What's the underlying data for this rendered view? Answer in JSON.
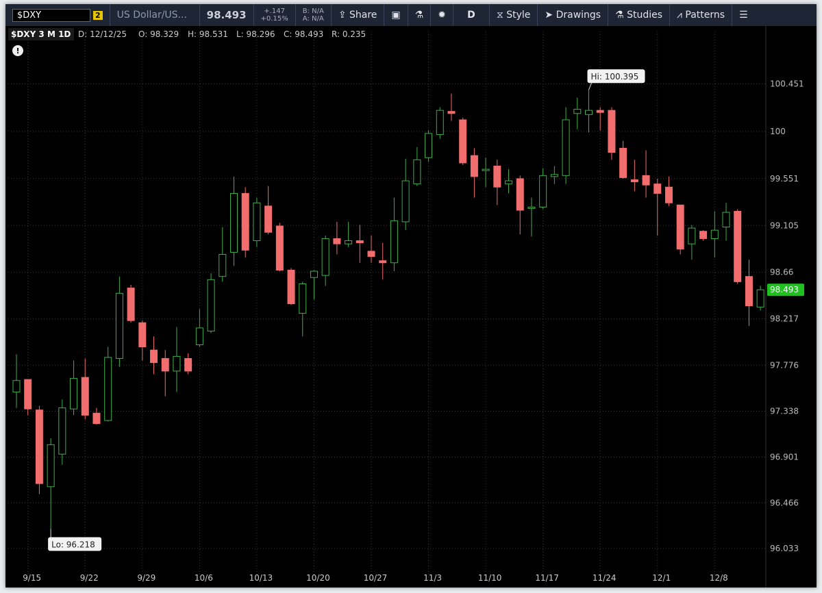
{
  "toolbar": {
    "symbol": "$DXY",
    "link_group": "2",
    "description": "US Dollar/US...",
    "last": "98.493",
    "change": "+.147",
    "change_pct": "+0.15%",
    "bid": "B: N/A",
    "ask": "A: N/A",
    "share": "Share",
    "aggregation": "D",
    "style": "Style",
    "drawings": "Drawings",
    "studies": "Studies",
    "patterns": "Patterns"
  },
  "info_bar": {
    "symbol": "$DXY 3 M 1D",
    "date": "D: 12/12/25",
    "open": "O: 98.329",
    "high": "H: 98.531",
    "low": "L: 98.296",
    "close": "C: 98.493",
    "range": "R: 0.235"
  },
  "chart_data": {
    "type": "candlestick",
    "categories": [
      null,
      "9/15",
      null,
      null,
      null,
      null,
      "9/22",
      null,
      null,
      null,
      null,
      "9/29",
      null,
      null,
      null,
      null,
      "10/6",
      null,
      null,
      null,
      null,
      "10/13",
      null,
      null,
      null,
      null,
      "10/20",
      null,
      null,
      null,
      null,
      "10/27",
      null,
      null,
      null,
      null,
      "11/3",
      null,
      null,
      null,
      null,
      "11/10",
      null,
      null,
      null,
      null,
      "11/17",
      null,
      null,
      null,
      null,
      "11/24",
      null,
      null,
      null,
      null,
      "12/1",
      null,
      null,
      null,
      null,
      "12/8",
      null,
      null,
      null,
      null
    ],
    "open": [
      97.52,
      97.64,
      97.35,
      96.62,
      96.93,
      97.36,
      97.66,
      97.32,
      97.25,
      97.84,
      98.51,
      98.18,
      97.92,
      97.84,
      97.72,
      97.84,
      97.97,
      98.1,
      98.62,
      98.85,
      99.41,
      98.96,
      99.29,
      99.1,
      98.68,
      98.27,
      98.61,
      98.63,
      98.98,
      98.93,
      98.96,
      98.86,
      98.77,
      98.75,
      99.14,
      99.5,
      99.75,
      99.97,
      100.19,
      100.11,
      99.77,
      99.63,
      99.67,
      99.5,
      99.55,
      99.27,
      99.28,
      99.57,
      99.58,
      100.17,
      100.16,
      100.2,
      100.2,
      99.84,
      99.54,
      99.58,
      99.5,
      99.47,
      99.3,
      98.93,
      99.05,
      98.98,
      99.09,
      99.24,
      98.62,
      98.329
    ],
    "high": [
      97.88,
      97.64,
      97.39,
      97.08,
      97.45,
      97.82,
      97.84,
      97.37,
      97.95,
      98.62,
      98.54,
      98.2,
      98.05,
      97.92,
      98.14,
      97.89,
      98.31,
      98.65,
      99.09,
      99.57,
      99.47,
      99.37,
      99.48,
      99.13,
      98.7,
      98.57,
      98.68,
      99.01,
      99.14,
      99.14,
      99.11,
      99.01,
      98.94,
      99.37,
      99.74,
      99.85,
      100.01,
      100.23,
      100.36,
      100.13,
      99.84,
      99.75,
      99.73,
      99.64,
      99.58,
      99.37,
      99.65,
      99.67,
      100.23,
      100.32,
      100.395,
      100.23,
      100.23,
      99.91,
      99.73,
      99.82,
      99.55,
      99.57,
      99.3,
      99.11,
      99.06,
      99.24,
      99.32,
      99.26,
      98.78,
      98.531
    ],
    "low": [
      97.37,
      97.3,
      96.55,
      96.218,
      96.83,
      97.3,
      97.26,
      97.21,
      97.24,
      97.76,
      98.18,
      97.82,
      97.69,
      97.48,
      97.52,
      97.69,
      97.95,
      98.08,
      98.57,
      98.72,
      98.8,
      98.9,
      99.02,
      98.67,
      98.35,
      98.05,
      98.4,
      98.53,
      98.83,
      98.9,
      98.75,
      98.75,
      98.59,
      98.67,
      99.06,
      99.48,
      99.71,
      99.93,
      100.1,
      99.68,
      99.37,
      99.47,
      99.3,
      99.41,
      99.02,
      99.0,
      99.26,
      99.5,
      99.5,
      100.02,
      99.99,
      100.01,
      99.73,
      99.55,
      99.43,
      99.37,
      99.01,
      99.29,
      98.83,
      98.78,
      98.96,
      98.8,
      98.96,
      98.55,
      98.15,
      98.296
    ],
    "close": [
      97.63,
      97.36,
      96.65,
      97.02,
      97.37,
      97.65,
      97.3,
      97.22,
      97.85,
      98.46,
      98.2,
      97.95,
      97.8,
      97.72,
      97.86,
      97.72,
      98.13,
      98.59,
      98.83,
      99.41,
      98.87,
      99.32,
      99.04,
      98.68,
      98.36,
      98.55,
      98.67,
      98.98,
      98.93,
      98.96,
      98.94,
      98.81,
      98.75,
      99.15,
      99.53,
      99.73,
      99.98,
      100.2,
      100.17,
      99.7,
      99.57,
      99.64,
      99.47,
      99.53,
      99.25,
      99.28,
      99.58,
      99.59,
      100.11,
      100.21,
      100.2,
      100.18,
      99.8,
      99.56,
      99.52,
      99.49,
      99.41,
      99.32,
      98.88,
      99.08,
      98.98,
      99.06,
      99.23,
      98.57,
      98.34,
      98.493
    ],
    "up_color": "#3fae49",
    "down_color": "#f26d6d",
    "ylim": [
      95.85,
      100.95
    ],
    "yticks": [
      96.033,
      96.466,
      96.901,
      97.338,
      97.776,
      98.217,
      98.66,
      99.105,
      99.551,
      100,
      100.451
    ],
    "grid": true,
    "last_price": 98.493,
    "annotations": [
      "Hi: 100.395",
      "Lo: 96.218"
    ]
  }
}
